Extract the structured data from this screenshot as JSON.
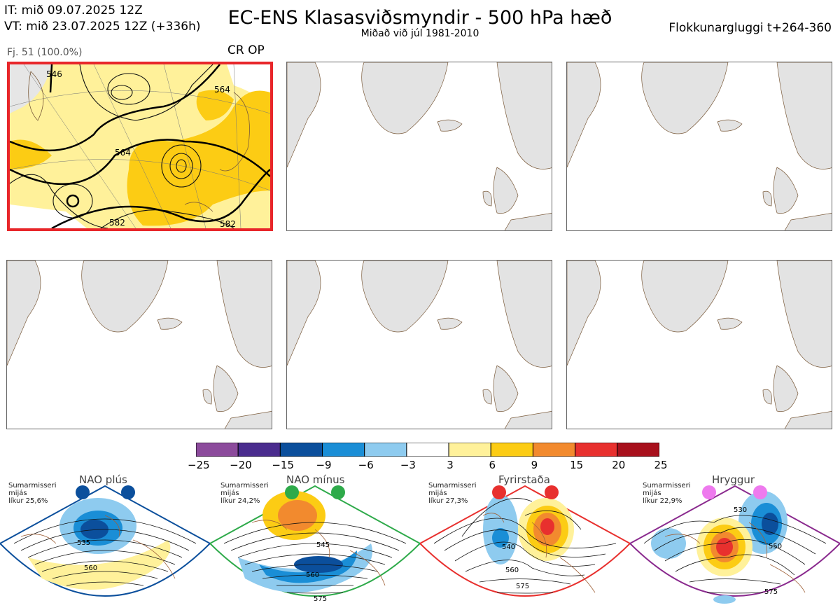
{
  "header": {
    "it_line": "IT: mið 09.07.2025 12Z",
    "vt_line": "VT: mið 23.07.2025 12Z  (+336h)",
    "title": "EC-ENS Klasasviðsmyndir - 500 hPa hæð",
    "subtitle": "Miðað við júl 1981-2010",
    "window": "Flokkunargluggi t+264-360"
  },
  "cluster": {
    "members_label": "Fj. 51 (100.0%)",
    "tag": "CR OP",
    "contour_labels": [
      "546",
      "564",
      "582",
      "582",
      "564"
    ]
  },
  "colorbar": {
    "colors": [
      "#8c4b9c",
      "#4a2c8e",
      "#0b4f9c",
      "#1a8ed6",
      "#8ecbef",
      "#ffffff",
      "#fff19a",
      "#fccc14",
      "#f28a2e",
      "#e8302e",
      "#a8101c"
    ],
    "ticks": [
      "−25",
      "−20",
      "−15",
      "−9",
      "−6",
      "−3",
      "3",
      "6",
      "9",
      "15",
      "20",
      "25"
    ]
  },
  "regimes": [
    {
      "title": "NAO plús",
      "note1": "Sumarmisseri",
      "note2": "mijás",
      "note3": "líkur 25,6%",
      "color": "#0b4f9c",
      "dot": "#0b4f9c",
      "labels": [
        "535",
        "560"
      ]
    },
    {
      "title": "NAO mínus",
      "note1": "Sumarmisseri",
      "note2": "mijás",
      "note3": "líkur 24,2%",
      "color": "#2eaa4a",
      "dot": "#2eaa4a",
      "labels": [
        "545",
        "560",
        "575"
      ]
    },
    {
      "title": "Fyrirstaða",
      "note1": "Sumarmisseri",
      "note2": "mijás",
      "note3": "líkur 27,3%",
      "color": "#e8302e",
      "dot": "#e8302e",
      "labels": [
        "540",
        "560",
        "575"
      ]
    },
    {
      "title": "Hryggur",
      "note1": "Sumarmisseri",
      "note2": "mijás",
      "note3": "líkur 22,9%",
      "color": "#8a2a8e",
      "dot": "#ee7aee",
      "labels": [
        "530",
        "550",
        "575"
      ]
    }
  ]
}
